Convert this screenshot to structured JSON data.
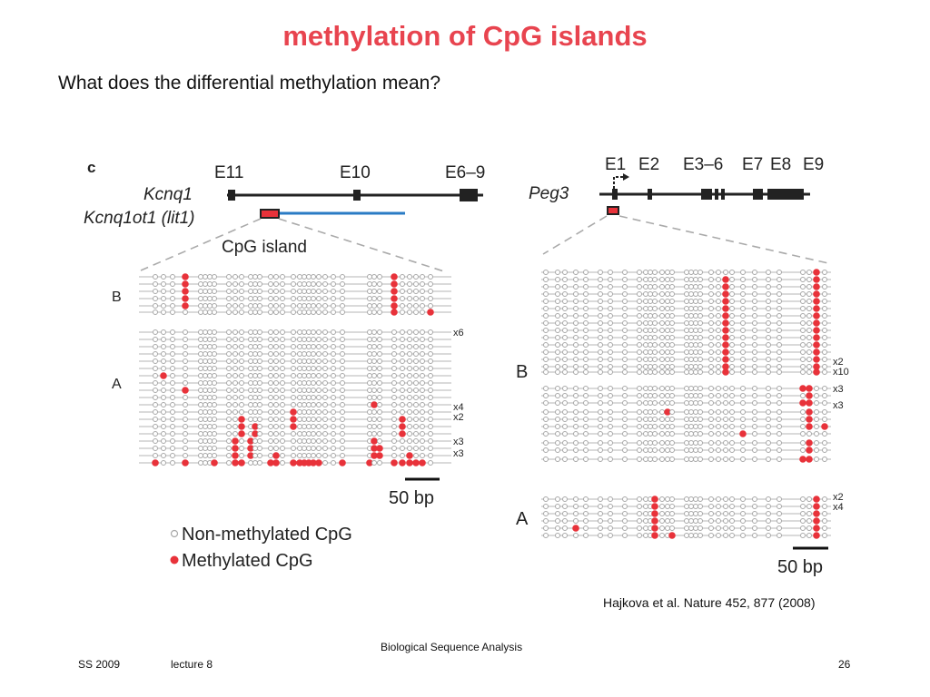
{
  "slide": {
    "title": "methylation of CpG islands",
    "question": "What does the differential methylation mean?",
    "citation": "Hajkova et al. Nature 452, 877 (2008)"
  },
  "footer": {
    "course": "Biological Sequence Analysis",
    "term": "SS 2009",
    "lecture": "lecture 8",
    "page": "26"
  },
  "figure": {
    "panel_label": "c",
    "left": {
      "gene1": "Kcnq1",
      "gene2": "Kcnq1ot1 (lit1)",
      "exons": [
        "E11",
        "E10",
        "E6–9"
      ],
      "cpg_label": "CpG island",
      "group_b_label": "B",
      "group_a_label": "A",
      "multipliers": [
        "x6",
        "x4",
        "x2",
        "x3",
        "x3"
      ],
      "scale": "50 bp"
    },
    "right": {
      "gene": "Peg3",
      "exons": [
        "E1",
        "E2",
        "E3–6",
        "E7",
        "E8",
        "E9"
      ],
      "group_b_label": "B",
      "group_a_label": "A",
      "multipliers_b": [
        "x2",
        "x10",
        "x3",
        "x3"
      ],
      "multipliers_a": [
        "x2",
        "x4"
      ],
      "scale": "50 bp"
    },
    "legend": {
      "unmethylated": "Non-methylated CpG",
      "methylated": "Methylated CpG"
    },
    "colors": {
      "methylated": "#e8323a",
      "unmethylated": "#a8a8a8",
      "transcript": "#2a7bc4",
      "title": "#e8444f"
    }
  }
}
